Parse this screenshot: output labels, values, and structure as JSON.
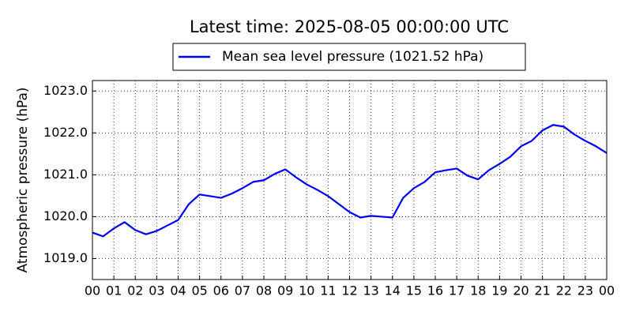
{
  "chart_data": {
    "type": "line",
    "title": "Latest time: 2025-08-05 00:00:00 UTC",
    "y_label": "Atmospheric pressure (hPa)",
    "x": [
      0,
      0.5,
      1,
      1.5,
      2,
      2.5,
      3,
      3.5,
      4,
      4.5,
      5,
      5.5,
      6,
      6.5,
      7,
      7.5,
      8,
      8.5,
      9,
      9.5,
      10,
      10.5,
      11,
      11.5,
      12,
      12.5,
      13,
      13.5,
      14,
      14.5,
      15,
      15.5,
      16,
      16.5,
      17,
      17.5,
      18,
      18.5,
      19,
      19.5,
      20,
      20.5,
      21,
      21.5,
      22,
      22.5,
      23,
      23.5,
      24
    ],
    "series": [
      {
        "name": "Mean sea level pressure (1021.52 hPa)",
        "color": "#0000ff",
        "values": [
          1019.62,
          1019.53,
          1019.72,
          1019.87,
          1019.68,
          1019.58,
          1019.66,
          1019.79,
          1019.92,
          1020.3,
          1020.53,
          1020.49,
          1020.45,
          1020.55,
          1020.68,
          1020.83,
          1020.87,
          1021.02,
          1021.13,
          1020.94,
          1020.77,
          1020.64,
          1020.49,
          1020.3,
          1020.11,
          1019.98,
          1020.02,
          1020.0,
          1019.98,
          1020.45,
          1020.68,
          1020.83,
          1021.06,
          1021.11,
          1021.15,
          1020.98,
          1020.89,
          1021.11,
          1021.26,
          1021.43,
          1021.68,
          1021.81,
          1022.06,
          1022.19,
          1022.15,
          1021.96,
          1021.81,
          1021.68,
          1021.52
        ]
      }
    ],
    "xlim": [
      0,
      24
    ],
    "xticks": [
      {
        "value": 0,
        "label": "00"
      },
      {
        "value": 1,
        "label": "01"
      },
      {
        "value": 2,
        "label": "02"
      },
      {
        "value": 3,
        "label": "03"
      },
      {
        "value": 4,
        "label": "04"
      },
      {
        "value": 5,
        "label": "05"
      },
      {
        "value": 6,
        "label": "06"
      },
      {
        "value": 7,
        "label": "07"
      },
      {
        "value": 8,
        "label": "08"
      },
      {
        "value": 9,
        "label": "09"
      },
      {
        "value": 10,
        "label": "10"
      },
      {
        "value": 11,
        "label": "11"
      },
      {
        "value": 12,
        "label": "12"
      },
      {
        "value": 13,
        "label": "13"
      },
      {
        "value": 14,
        "label": "14"
      },
      {
        "value": 15,
        "label": "15"
      },
      {
        "value": 16,
        "label": "16"
      },
      {
        "value": 17,
        "label": "17"
      },
      {
        "value": 18,
        "label": "18"
      },
      {
        "value": 19,
        "label": "19"
      },
      {
        "value": 20,
        "label": "20"
      },
      {
        "value": 21,
        "label": "21"
      },
      {
        "value": 22,
        "label": "22"
      },
      {
        "value": 23,
        "label": "23"
      },
      {
        "value": 24,
        "label": "00"
      }
    ],
    "ylim": [
      1018.5,
      1023.25
    ],
    "yticks": [
      {
        "value": 1019,
        "label": "1019.0"
      },
      {
        "value": 1020,
        "label": "1020.0"
      },
      {
        "value": 1021,
        "label": "1021.0"
      },
      {
        "value": 1022,
        "label": "1022.0"
      },
      {
        "value": 1023,
        "label": "1023.0"
      }
    ],
    "grid": true,
    "legend": "top"
  }
}
